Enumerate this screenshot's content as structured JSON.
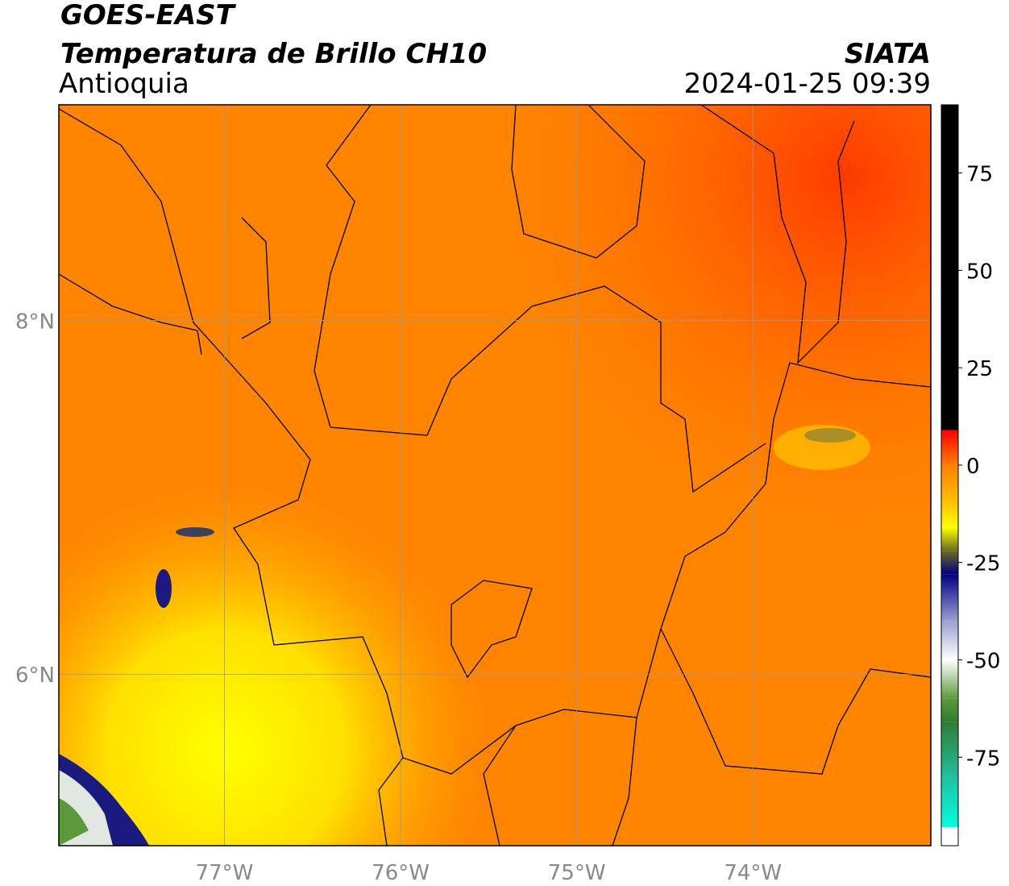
{
  "title": "GOES-EAST",
  "subtitle": "Temperatura de Brillo CH10",
  "region": "Antioquia",
  "source": "SIATA",
  "datetime": "2024-01-25 09:39",
  "map": {
    "xlim": [
      -77.94,
      -72.99
    ],
    "ylim": [
      5.03,
      9.22
    ],
    "xticks": [
      {
        "value": -77,
        "label": "77°W"
      },
      {
        "value": -76,
        "label": "76°W"
      },
      {
        "value": -75,
        "label": "75°W"
      },
      {
        "value": -74,
        "label": "74°W"
      }
    ],
    "yticks": [
      {
        "value": 8,
        "label": "8°N"
      },
      {
        "value": 6,
        "label": "6°N"
      }
    ],
    "grid": true
  },
  "colorbar": {
    "clim": [
      -97.7,
      92.5
    ],
    "ticks": [
      75,
      50,
      25,
      0,
      -25,
      -50,
      -75
    ],
    "colormap": [
      {
        "value": 92.5,
        "color": "#000000"
      },
      {
        "value": 9,
        "color": "#000000"
      },
      {
        "value": 8.9,
        "color": "#ff0000"
      },
      {
        "value": 0,
        "color": "#ff8000"
      },
      {
        "value": -10,
        "color": "#ffc400"
      },
      {
        "value": -16,
        "color": "#ffff00"
      },
      {
        "value": -22,
        "color": "#6b6b1e"
      },
      {
        "value": -28,
        "color": "#000080"
      },
      {
        "value": -40,
        "color": "#9aa0d0"
      },
      {
        "value": -50,
        "color": "#ffffff"
      },
      {
        "value": -60,
        "color": "#5a9a3a"
      },
      {
        "value": -66,
        "color": "#2e7d32"
      },
      {
        "value": -80,
        "color": "#20c0a0"
      },
      {
        "value": -93,
        "color": "#00ffe0"
      },
      {
        "value": -93.1,
        "color": "#ffffff"
      },
      {
        "value": -97.7,
        "color": "#ffffff"
      }
    ]
  }
}
